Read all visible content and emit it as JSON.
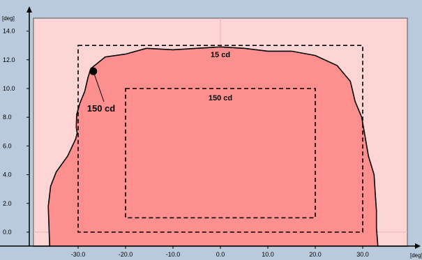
{
  "chart_data": {
    "type": "area",
    "x_unit": "[deg]",
    "y_unit": "[deg]",
    "xlim": [
      -40,
      43
    ],
    "ylim": [
      -1.0,
      15.8
    ],
    "x_ticks": [
      {
        "value": -30,
        "label": "-30.0"
      },
      {
        "value": -20,
        "label": "-20.0"
      },
      {
        "value": -10,
        "label": "-10.0"
      },
      {
        "value": 0,
        "label": "0.0"
      },
      {
        "value": 10,
        "label": "10.0"
      },
      {
        "value": 20,
        "label": "20.0"
      },
      {
        "value": 30,
        "label": "30.0"
      }
    ],
    "y_ticks": [
      {
        "value": 0,
        "label": "0.0"
      },
      {
        "value": 2,
        "label": "2.0"
      },
      {
        "value": 4,
        "label": "4.0"
      },
      {
        "value": 6,
        "label": "6.0"
      },
      {
        "value": 8,
        "label": "8.0"
      },
      {
        "value": 10,
        "label": "10.0"
      },
      {
        "value": 12,
        "label": "12.0"
      },
      {
        "value": 14,
        "label": "14.0"
      }
    ],
    "background_region": {
      "x": [
        -40,
        40
      ],
      "y": [
        -1.0,
        14.9
      ]
    },
    "polygon": [
      [
        -36.0,
        -1.0
      ],
      [
        -36.3,
        1.8
      ],
      [
        -35.8,
        3.2
      ],
      [
        -34.6,
        4.2
      ],
      [
        -32.2,
        5.3
      ],
      [
        -30.5,
        6.5
      ],
      [
        -30.2,
        6.9
      ],
      [
        -30.4,
        7.3
      ],
      [
        -30.3,
        8.2
      ],
      [
        -29.6,
        9.0
      ],
      [
        -28.6,
        9.8
      ],
      [
        -27.9,
        10.8
      ],
      [
        -27.3,
        11.4
      ],
      [
        -24.3,
        12.2
      ],
      [
        -20.0,
        12.4
      ],
      [
        -15.6,
        12.8
      ],
      [
        -10.0,
        12.7
      ],
      [
        -5.0,
        12.8
      ],
      [
        0.0,
        12.9
      ],
      [
        5.0,
        12.8
      ],
      [
        10.0,
        12.6
      ],
      [
        15.0,
        12.6
      ],
      [
        20.0,
        12.3
      ],
      [
        24.6,
        11.6
      ],
      [
        27.4,
        10.5
      ],
      [
        28.4,
        9.1
      ],
      [
        29.8,
        8.0
      ],
      [
        31.2,
        5.3
      ],
      [
        32.4,
        4.0
      ],
      [
        32.6,
        2.9
      ],
      [
        32.9,
        1.5
      ],
      [
        32.9,
        0.3
      ],
      [
        33.2,
        -1.0
      ]
    ],
    "zones": [
      {
        "label": "15 cd",
        "x": [
          -30,
          30
        ],
        "y": [
          0,
          13
        ]
      },
      {
        "label": "150 cd",
        "x": [
          -20,
          20
        ],
        "y": [
          1,
          10
        ]
      }
    ],
    "annotation": {
      "label": "150 cd",
      "point": [
        -26.8,
        11.2
      ]
    }
  }
}
